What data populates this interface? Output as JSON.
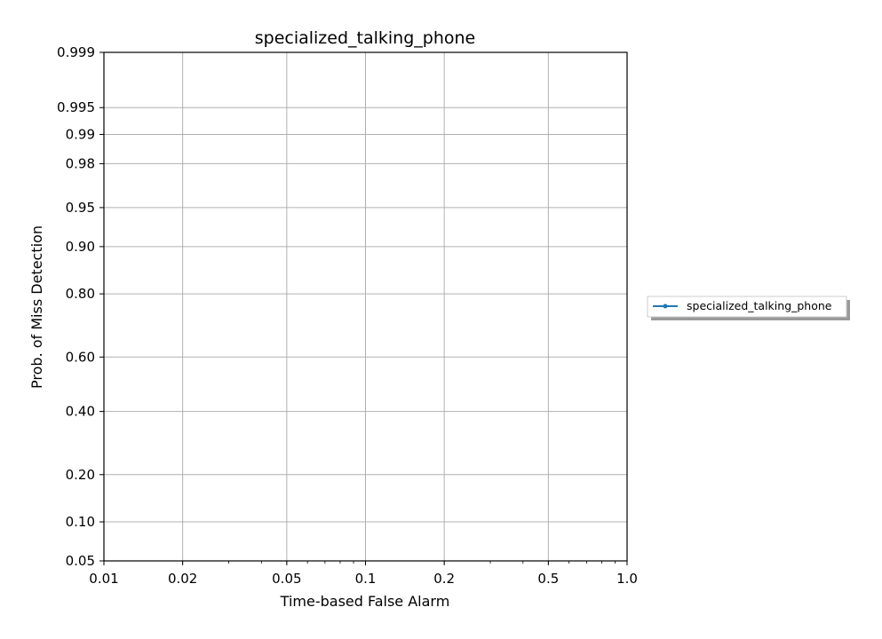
{
  "chart_data": {
    "type": "line",
    "title": "specialized_talking_phone",
    "xlabel": "Time-based False Alarm",
    "ylabel": "Prob. of Miss Detection",
    "xscale": "log",
    "yscale": "normal-deviate",
    "xlim": [
      0.01,
      1.0
    ],
    "ylim": [
      0.05,
      0.999
    ],
    "xticks": [
      {
        "value": 0.01,
        "label": "0.01"
      },
      {
        "value": 0.02,
        "label": "0.02"
      },
      {
        "value": 0.05,
        "label": "0.05"
      },
      {
        "value": 0.1,
        "label": "0.1"
      },
      {
        "value": 0.2,
        "label": "0.2"
      },
      {
        "value": 0.5,
        "label": "0.5"
      },
      {
        "value": 1.0,
        "label": "1.0"
      }
    ],
    "yticks": [
      {
        "value": 0.05,
        "label": "0.05"
      },
      {
        "value": 0.1,
        "label": "0.10"
      },
      {
        "value": 0.2,
        "label": "0.20"
      },
      {
        "value": 0.4,
        "label": "0.40"
      },
      {
        "value": 0.6,
        "label": "0.60"
      },
      {
        "value": 0.8,
        "label": "0.80"
      },
      {
        "value": 0.9,
        "label": "0.90"
      },
      {
        "value": 0.95,
        "label": "0.95"
      },
      {
        "value": 0.98,
        "label": "0.98"
      },
      {
        "value": 0.99,
        "label": "0.99"
      },
      {
        "value": 0.995,
        "label": "0.995"
      },
      {
        "value": 0.999,
        "label": "0.999"
      }
    ],
    "grid": true,
    "legend_position": "right-outside",
    "series": [
      {
        "name": "specialized_talking_phone",
        "color": "#1f77b4",
        "x": [],
        "y": []
      }
    ]
  }
}
